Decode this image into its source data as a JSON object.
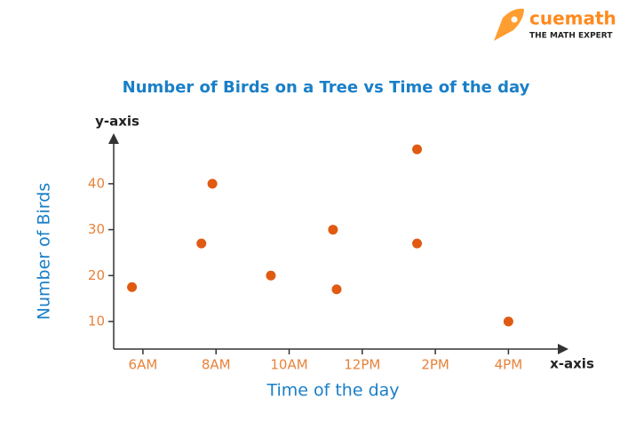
{
  "logo": {
    "name": "cuemath",
    "tagline": "THE MATH EXPERT"
  },
  "chart_data": {
    "type": "scatter",
    "title": "Number of Birds on a Tree vs Time of the day",
    "x_label": "Time of the day",
    "y_label": "Number of Birds",
    "x_axis_name": "x-axis",
    "y_axis_name": "y-axis",
    "x": [
      5.7,
      7.6,
      7.9,
      9.5,
      11.2,
      11.3,
      13.5,
      13.5,
      16
    ],
    "values": [
      17.5,
      27,
      40,
      20,
      30,
      17,
      47.5,
      27,
      10
    ],
    "color": "#e05a12",
    "xlim": [
      5.2,
      17.4
    ],
    "xticks": [
      {
        "value": 6,
        "label": "6AM"
      },
      {
        "value": 8,
        "label": "8AM"
      },
      {
        "value": 10,
        "label": "10AM"
      },
      {
        "value": 12,
        "label": "12PM"
      },
      {
        "value": 14,
        "label": "2PM"
      },
      {
        "value": 16,
        "label": "4PM"
      }
    ],
    "ylim": [
      4,
      51
    ],
    "yticks": [
      10,
      20,
      30,
      40
    ],
    "grid": false
  }
}
